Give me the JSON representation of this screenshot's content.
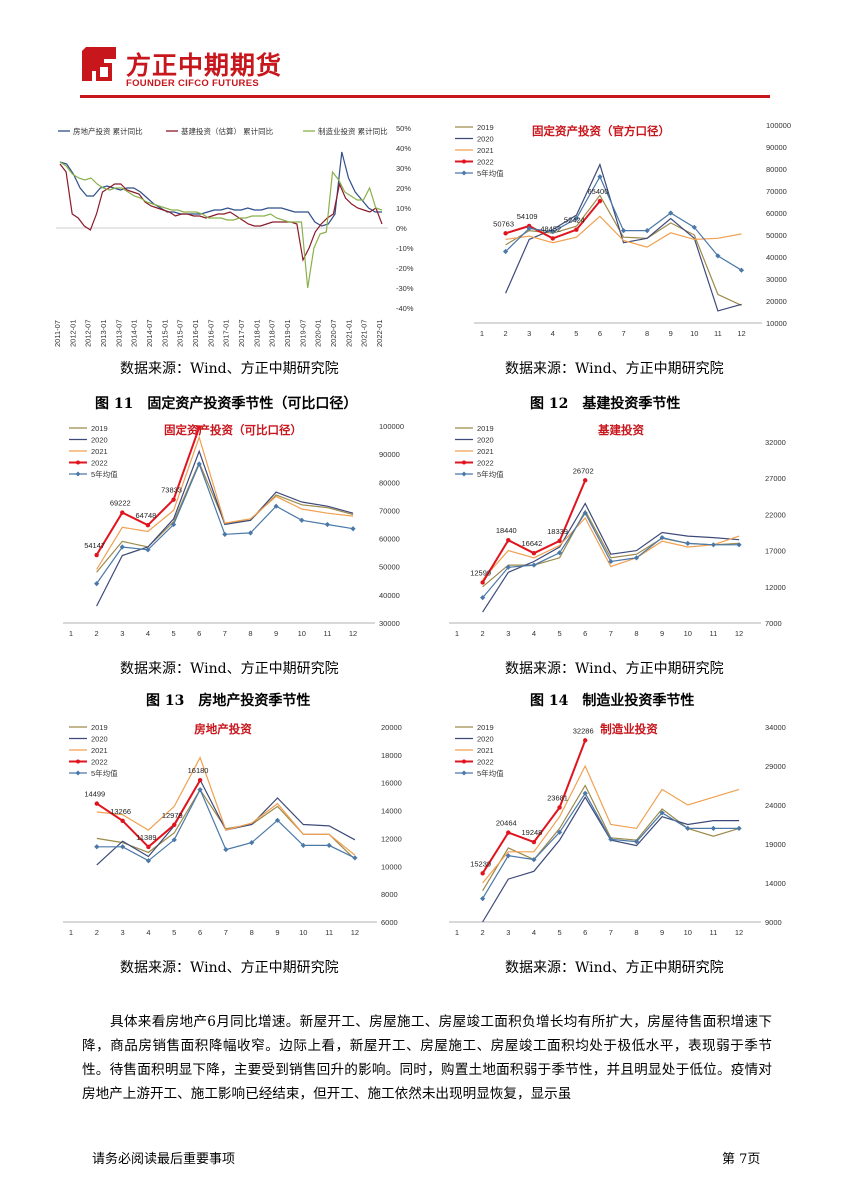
{
  "header": {
    "company_cn": "方正中期期货",
    "company_en": "FOUNDER CIFCO FUTURES",
    "brand_color": "#c8161d"
  },
  "colors": {
    "y2019": "#9c8a4a",
    "y2020": "#3d4a7a",
    "y2021": "#f0a050",
    "y2022": "#e0141e",
    "avg": "#4a78a8",
    "re": "#2f4f8a",
    "infra": "#8b1a2a",
    "mfg": "#8ab04a"
  },
  "captions": {
    "fig11": "图 11　固定资产投资季节性（可比口径）",
    "fig12": "图 12　基建投资季节性",
    "fig13": "图 13　房地产投资季节性",
    "fig14": "图 14　制造业投资季节性"
  },
  "sources": [
    "数据来源：Wind、方正中期研究院",
    "数据来源：Wind、方正中期研究院",
    "数据来源：Wind、方正中期研究院",
    "数据来源：Wind、方正中期研究院",
    "数据来源：Wind、方正中期研究院",
    "数据来源：Wind、方正中期研究院"
  ],
  "body_text": "具体来看房地产6月同比增速。新屋开工、房屋施工、房屋竣工面积负增长均有所扩大，房屋待售面积增速下降，商品房销售面积降幅收窄。边际上看，新屋开工、房屋施工、房屋竣工面积均处于极低水平，表现弱于季节性。待售面积明显下降，主要受到销售回升的影响。同时，购置土地面积弱于季节性，并且明显处于低位。疫情对房地产上游开工、施工影响已经结束，但开工、施工依然未出现明显恢复，显示虽",
  "footer": {
    "notice": "请务必阅读最后重要事项",
    "page": "第 7页"
  },
  "chart_data": [
    {
      "id": "growth",
      "type": "line",
      "title": "",
      "legend": [
        "房地产投资  累计同比",
        "基建投资（估算）  累计同比",
        "制造业投资  累计同比"
      ],
      "x_labels": [
        "2011-07",
        "2012-01",
        "2012-07",
        "2013-01",
        "2013-07",
        "2014-01",
        "2014-07",
        "2015-01",
        "2015-07",
        "2016-01",
        "2016-07",
        "2017-01",
        "2017-07",
        "2018-01",
        "2018-07",
        "2019-01",
        "2019-07",
        "2020-01",
        "2020-07",
        "2021-01",
        "2021-07",
        "2022-01"
      ],
      "yticks": [
        "50%",
        "40%",
        "30%",
        "20%",
        "10%",
        "0%",
        "-10%",
        "-20%",
        "-30%",
        "-40%"
      ],
      "ylim": [
        -40,
        50
      ],
      "series": [
        {
          "name": "房地产投资  累计同比",
          "values": [
            33,
            32,
            27,
            20,
            16,
            16,
            20,
            21,
            20,
            19,
            20,
            20,
            18,
            15,
            12,
            10,
            8,
            8,
            7,
            7,
            7,
            7,
            8,
            9,
            9,
            10,
            9,
            9,
            10,
            9,
            9,
            10,
            10,
            10,
            9,
            8,
            8,
            8,
            3,
            1,
            2,
            7,
            38,
            25,
            18,
            14,
            10,
            8,
            8
          ]
        },
        {
          "name": "基建投资（估算）  累计同比",
          "values": [
            32,
            28,
            7,
            5,
            1,
            -1,
            7,
            18,
            20,
            22,
            22,
            19,
            18,
            17,
            13,
            11,
            10,
            9,
            8,
            6,
            7,
            7,
            6,
            6,
            5,
            6,
            7,
            7,
            8,
            6,
            4,
            2,
            1,
            1,
            2,
            3,
            3,
            3,
            3,
            2,
            -16,
            -10,
            -2,
            2,
            5,
            7,
            22,
            15,
            12,
            10,
            9,
            8,
            10,
            2
          ]
        },
        {
          "name": "制造业投资  累计同比",
          "values": [
            33,
            31,
            27,
            25,
            24,
            25,
            22,
            20,
            19,
            20,
            20,
            18,
            16,
            15,
            13,
            12,
            11,
            10,
            9,
            9,
            8,
            8,
            8,
            7,
            5,
            5,
            5,
            4,
            4,
            5,
            5,
            6,
            6,
            6,
            7,
            5,
            4,
            3,
            3,
            3,
            -30,
            -10,
            -3,
            -2,
            28,
            24,
            18,
            16,
            14,
            14,
            20,
            10,
            9
          ]
        }
      ]
    },
    {
      "id": "fai_official",
      "type": "line",
      "title": "固定资产投资（官方口径）",
      "categories": [
        1,
        2,
        3,
        4,
        5,
        6,
        7,
        8,
        9,
        10,
        11,
        12
      ],
      "ylim": [
        10000,
        100000
      ],
      "yticks": [
        "100000",
        "90000",
        "80000",
        "70000",
        "60000",
        "50000",
        "40000",
        "30000",
        "20000",
        "10000"
      ],
      "legend": [
        "2019",
        "2020",
        "2021",
        "2022",
        "5年均值"
      ],
      "series": [
        {
          "name": "2019",
          "values": [
            null,
            45500,
            52000,
            50800,
            54000,
            68000,
            49000,
            48500,
            55500,
            50000,
            23000,
            18000
          ]
        },
        {
          "name": "2020",
          "values": [
            null,
            23500,
            48000,
            52500,
            59000,
            82000,
            46500,
            48500,
            57500,
            48500,
            15500,
            18500
          ]
        },
        {
          "name": "2021",
          "values": [
            null,
            48000,
            49500,
            46500,
            49000,
            58500,
            47500,
            44500,
            51000,
            48000,
            48500,
            50500
          ]
        },
        {
          "name": "2022",
          "values": [
            null,
            50763,
            54109,
            48452,
            52424,
            65400,
            null,
            null,
            null,
            null,
            null,
            null
          ]
        },
        {
          "name": "5年均值",
          "values": [
            null,
            42500,
            53000,
            51500,
            57500,
            76500,
            52000,
            52000,
            60000,
            53500,
            40500,
            34000
          ]
        }
      ],
      "labels": [
        "50763",
        "54109",
        "48452",
        "52424",
        "65400"
      ]
    },
    {
      "id": "fai_comparable",
      "type": "line",
      "title": "固定资产投资（可比口径）",
      "categories": [
        1,
        2,
        3,
        4,
        5,
        6,
        7,
        8,
        9,
        10,
        11,
        12
      ],
      "ylim": [
        30000,
        100000
      ],
      "yticks": [
        "100000",
        "90000",
        "80000",
        "70000",
        "60000",
        "50000",
        "40000",
        "30000"
      ],
      "legend": [
        "2019",
        "2020",
        "2021",
        "2022",
        "5年均值"
      ],
      "series": [
        {
          "name": "2019",
          "values": [
            null,
            48000,
            59000,
            57000,
            66000,
            87000,
            65500,
            66500,
            75500,
            72000,
            71000,
            68500
          ]
        },
        {
          "name": "2020",
          "values": [
            null,
            36000,
            54000,
            57000,
            67000,
            91000,
            65000,
            66500,
            76500,
            73000,
            71500,
            69000
          ]
        },
        {
          "name": "2021",
          "values": [
            null,
            49000,
            64000,
            62500,
            70000,
            96000,
            65500,
            67000,
            75000,
            70500,
            69000,
            68000
          ]
        },
        {
          "name": "2022",
          "values": [
            null,
            54147,
            69222,
            64748,
            73833,
            99500,
            null,
            null,
            null,
            null,
            null,
            null
          ]
        },
        {
          "name": "5年均值",
          "values": [
            null,
            44000,
            57000,
            56000,
            65000,
            86500,
            61500,
            62000,
            71500,
            66500,
            65000,
            63500
          ]
        }
      ],
      "labels": [
        "54147",
        "69222",
        "64748",
        "73833"
      ]
    },
    {
      "id": "infra",
      "type": "line",
      "title": "基建投资",
      "categories": [
        1,
        2,
        3,
        4,
        5,
        6,
        7,
        8,
        9,
        10,
        11,
        12
      ],
      "ylim": [
        7000,
        32000
      ],
      "yticks": [
        "32000",
        "27000",
        "22000",
        "17000",
        "12000",
        "7000"
      ],
      "legend": [
        "2019",
        "2020",
        "2021",
        "2022",
        "5年均值"
      ],
      "series": [
        {
          "name": "2019",
          "values": [
            null,
            12000,
            15000,
            15000,
            16000,
            22500,
            16000,
            16500,
            18700,
            18000,
            17800,
            18000
          ]
        },
        {
          "name": "2020",
          "values": [
            null,
            8500,
            14000,
            15500,
            17500,
            23500,
            16500,
            17000,
            19500,
            19000,
            18800,
            18500
          ]
        },
        {
          "name": "2021",
          "values": [
            null,
            13000,
            17000,
            16000,
            17700,
            21500,
            14800,
            16000,
            18300,
            17500,
            17800,
            19000
          ]
        },
        {
          "name": "2022",
          "values": [
            null,
            12599,
            18440,
            16642,
            18339,
            26702,
            null,
            null,
            null,
            null,
            null,
            null
          ]
        },
        {
          "name": "5年均值",
          "values": [
            null,
            10500,
            14700,
            15000,
            16700,
            22200,
            15500,
            16000,
            18800,
            18000,
            17800,
            17800
          ]
        }
      ],
      "labels": [
        "12599",
        "18440",
        "16642",
        "18339",
        "26702"
      ]
    },
    {
      "id": "realestate",
      "type": "line",
      "title": "房地产投资",
      "categories": [
        1,
        2,
        3,
        4,
        5,
        6,
        7,
        8,
        9,
        10,
        11,
        12
      ],
      "ylim": [
        6000,
        20000
      ],
      "yticks": [
        "20000",
        "18000",
        "16000",
        "14000",
        "12000",
        "10000",
        "8000",
        "6000"
      ],
      "legend": [
        "2019",
        "2020",
        "2021",
        "2022",
        "5年均值"
      ],
      "series": [
        {
          "name": "2019",
          "values": [
            null,
            12000,
            11700,
            11000,
            12400,
            15500,
            12700,
            13000,
            14300,
            12300,
            12300,
            10500
          ]
        },
        {
          "name": "2020",
          "values": [
            null,
            10100,
            11800,
            10700,
            12900,
            16200,
            12600,
            13000,
            14900,
            13000,
            12900,
            11900
          ]
        },
        {
          "name": "2021",
          "values": [
            null,
            13900,
            13700,
            12600,
            14300,
            17800,
            12600,
            13100,
            14500,
            12300,
            12300,
            10800
          ]
        },
        {
          "name": "2022",
          "values": [
            null,
            14499,
            13266,
            11389,
            12979,
            16180,
            null,
            null,
            null,
            null,
            null,
            null
          ]
        },
        {
          "name": "5年均值",
          "values": [
            null,
            11400,
            11400,
            10400,
            11900,
            15500,
            11200,
            11700,
            13300,
            11500,
            11500,
            10600
          ]
        }
      ],
      "labels": [
        "14499",
        "13266",
        "11389",
        "12979",
        "16180"
      ]
    },
    {
      "id": "manufacturing",
      "type": "line",
      "title": "制造业投资",
      "categories": [
        1,
        2,
        3,
        4,
        5,
        6,
        7,
        8,
        9,
        10,
        11,
        12
      ],
      "ylim": [
        9000,
        34000
      ],
      "yticks": [
        "34000",
        "29000",
        "24000",
        "19000",
        "14000",
        "9000"
      ],
      "legend": [
        "2019",
        "2020",
        "2021",
        "2022",
        "5年均值"
      ],
      "series": [
        {
          "name": "2019",
          "values": [
            null,
            13000,
            18500,
            17000,
            21000,
            26500,
            19800,
            19500,
            23500,
            21000,
            20000,
            21000
          ]
        },
        {
          "name": "2020",
          "values": [
            null,
            9000,
            14500,
            15500,
            19500,
            25000,
            19500,
            18800,
            22500,
            21500,
            22000,
            22000
          ]
        },
        {
          "name": "2021",
          "values": [
            null,
            14000,
            18000,
            18000,
            22500,
            29000,
            21500,
            21000,
            26000,
            24000,
            25000,
            26000
          ]
        },
        {
          "name": "2022",
          "values": [
            null,
            15239,
            20464,
            19248,
            23681,
            32286,
            null,
            null,
            null,
            null,
            null,
            null
          ]
        },
        {
          "name": "5年均值",
          "values": [
            null,
            12000,
            17500,
            17000,
            20500,
            25500,
            19600,
            19300,
            23000,
            21000,
            21000,
            21000
          ]
        }
      ],
      "labels": [
        "15239",
        "20464",
        "19248",
        "23681",
        "32286"
      ]
    }
  ]
}
